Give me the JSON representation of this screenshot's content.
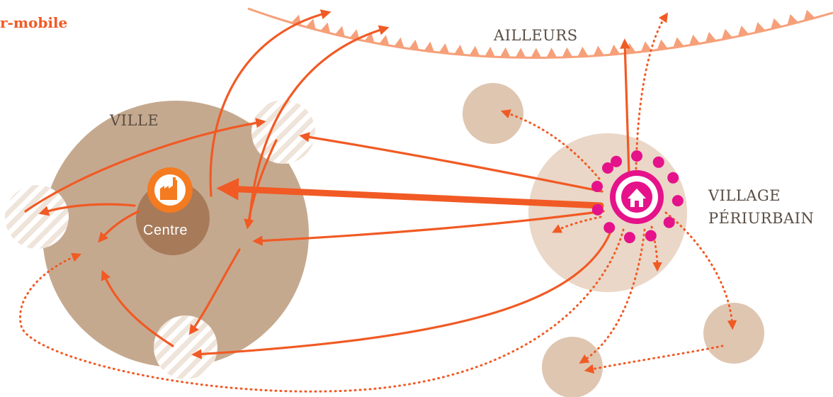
{
  "title": "r-mobile",
  "labels": {
    "ailleurs": "AILLEURS",
    "ville": "VILLE",
    "centre": "Centre",
    "village_line1": "VILLAGE",
    "village_line2": "PÉRIURBAIN"
  },
  "colors": {
    "arrow": "#f15a24",
    "ailleurs_band": "#f6a07a",
    "ville": "#c5a98f",
    "centre": "#a77a5a",
    "village": "#ead7c7",
    "satellite": "#dfc6b1",
    "hatched_base": "#efe4da",
    "hatched_stripe": "#ffffff",
    "factory_ring": "#f47b20",
    "home": "#e5128a",
    "dots": "#e5128a"
  },
  "icons": {
    "factory": "factory-icon",
    "home": "home-icon"
  }
}
